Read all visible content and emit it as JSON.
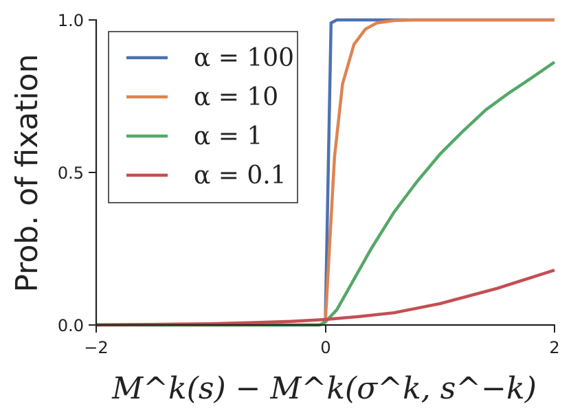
{
  "chart_data": {
    "type": "line",
    "xlabel": "M^k(s) − M^k(σ^k, s^−k)",
    "ylabel": "Prob. of fixation",
    "xlim": [
      -2,
      2
    ],
    "ylim": [
      0,
      1
    ],
    "x_ticks": [
      "−2",
      "0",
      "2"
    ],
    "y_ticks": [
      "0.0",
      "0.5",
      "1.0"
    ],
    "legend_position": "top-left",
    "grid": false,
    "series": [
      {
        "name": "α = 100",
        "color": "#4c72b0",
        "points": [
          [
            -2,
            0
          ],
          [
            -0.05,
            0
          ],
          [
            0,
            0.01
          ],
          [
            0.05,
            0.99
          ],
          [
            0.1,
            1
          ],
          [
            2,
            1
          ]
        ]
      },
      {
        "name": "α = 10",
        "color": "#dd8452",
        "points": [
          [
            -2,
            0
          ],
          [
            -0.05,
            0
          ],
          [
            0,
            0.01
          ],
          [
            0.08,
            0.55
          ],
          [
            0.15,
            0.79
          ],
          [
            0.25,
            0.92
          ],
          [
            0.35,
            0.97
          ],
          [
            0.45,
            0.99
          ],
          [
            0.6,
            0.998
          ],
          [
            0.8,
            1
          ],
          [
            2,
            1
          ]
        ]
      },
      {
        "name": "α = 1",
        "color": "#55a868",
        "points": [
          [
            -2,
            0
          ],
          [
            -0.05,
            0
          ],
          [
            0,
            0.01
          ],
          [
            0.1,
            0.05
          ],
          [
            0.25,
            0.15
          ],
          [
            0.4,
            0.25
          ],
          [
            0.6,
            0.37
          ],
          [
            0.8,
            0.47
          ],
          [
            1.0,
            0.56
          ],
          [
            1.2,
            0.635
          ],
          [
            1.4,
            0.705
          ],
          [
            1.6,
            0.76
          ],
          [
            1.8,
            0.81
          ],
          [
            2.0,
            0.862
          ]
        ]
      },
      {
        "name": "α = 0.1",
        "color": "#c44e52",
        "points": [
          [
            -2,
            0.001
          ],
          [
            -1.5,
            0.002
          ],
          [
            -1.0,
            0.004
          ],
          [
            -0.6,
            0.008
          ],
          [
            -0.3,
            0.012
          ],
          [
            0,
            0.018
          ],
          [
            0.3,
            0.028
          ],
          [
            0.6,
            0.04
          ],
          [
            1.0,
            0.07
          ],
          [
            1.5,
            0.12
          ],
          [
            2.0,
            0.18
          ]
        ]
      }
    ]
  }
}
